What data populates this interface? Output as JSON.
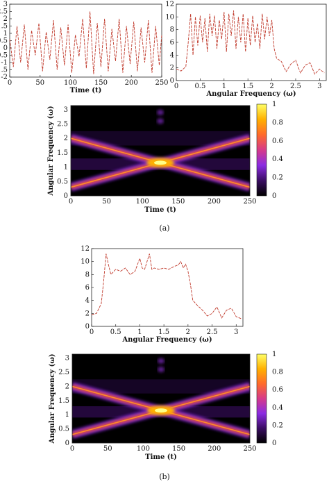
{
  "figure": {
    "caption_a": "(a)",
    "caption_b": "(b)"
  },
  "chart_data": [
    {
      "id": "signal",
      "type": "line",
      "title": "",
      "xlabel": "Time (t)",
      "ylabel": "",
      "xlim": [
        0,
        250
      ],
      "ylim": [
        -2,
        3
      ],
      "xticks": [
        "0",
        "50",
        "100",
        "150",
        "200",
        "250"
      ],
      "yticks": [
        "-2",
        "-1.5",
        "-1",
        "-0.5",
        "0",
        "0.5",
        "1",
        "1.5",
        "2",
        "2.5",
        "3"
      ],
      "x": [
        0,
        6,
        12,
        18,
        24,
        30,
        36,
        42,
        48,
        54,
        60,
        66,
        72,
        78,
        84,
        90,
        96,
        102,
        108,
        114,
        120,
        126,
        132,
        138,
        144,
        150,
        156,
        162,
        168,
        174,
        180,
        186,
        192,
        198,
        204,
        210,
        216,
        222,
        228,
        234,
        240,
        246,
        250
      ],
      "values": [
        0.6,
        -1.3,
        1.5,
        -1.0,
        1.6,
        -1.5,
        1.2,
        -0.5,
        1.7,
        -1.6,
        1.1,
        -0.8,
        1.9,
        -1.5,
        1.4,
        -1.2,
        1.6,
        -1.7,
        0.9,
        -0.6,
        2.0,
        -1.4,
        2.5,
        -1.8,
        1.7,
        -1.3,
        2.0,
        -1.6,
        1.3,
        -0.9,
        2.0,
        -1.7,
        1.5,
        -1.1,
        1.8,
        -1.6,
        1.4,
        -1.0,
        1.9,
        -1.7,
        1.5,
        -1.2,
        0.9
      ],
      "color": "#c0392b"
    },
    {
      "id": "spectrum_a",
      "type": "line",
      "title": "",
      "xlabel": "Angular Frequency (ω)",
      "ylabel": "",
      "xlim": [
        0,
        3.14
      ],
      "ylim": [
        0,
        12
      ],
      "xticks": [
        "0",
        "0.5",
        "1",
        "1.5",
        "2",
        "2.5",
        "3"
      ],
      "yticks": [
        "0",
        "2",
        "4",
        "6",
        "8",
        "10",
        "12"
      ],
      "x": [
        0,
        0.1,
        0.2,
        0.25,
        0.3,
        0.35,
        0.4,
        0.45,
        0.5,
        0.55,
        0.6,
        0.65,
        0.7,
        0.75,
        0.8,
        0.85,
        0.9,
        0.95,
        1.0,
        1.05,
        1.1,
        1.15,
        1.2,
        1.25,
        1.3,
        1.35,
        1.4,
        1.45,
        1.5,
        1.55,
        1.6,
        1.65,
        1.7,
        1.75,
        1.8,
        1.85,
        1.9,
        1.95,
        2.0,
        2.05,
        2.1,
        2.2,
        2.3,
        2.4,
        2.5,
        2.6,
        2.7,
        2.8,
        2.9,
        3.0,
        3.1
      ],
      "values": [
        1.8,
        1.5,
        2.2,
        6.0,
        10.5,
        4.0,
        10.0,
        5.5,
        10.2,
        6.0,
        9.8,
        4.5,
        10.5,
        7.0,
        10.2,
        5.0,
        9.5,
        6.5,
        10.8,
        4.5,
        10.5,
        7.0,
        11.0,
        5.0,
        10.0,
        6.0,
        10.5,
        4.5,
        9.8,
        5.5,
        10.2,
        6.0,
        9.0,
        5.0,
        10.5,
        6.5,
        10.0,
        7.0,
        9.5,
        5.0,
        3.5,
        3.0,
        1.4,
        2.6,
        3.2,
        1.2,
        2.4,
        2.8,
        1.0,
        1.8,
        1.2
      ],
      "color": "#c0392b"
    },
    {
      "id": "tfr_a",
      "type": "heatmap",
      "title": "",
      "xlabel": "Time (t)",
      "ylabel": "Angular Frequency (ω)",
      "xlim": [
        0,
        250
      ],
      "ylim": [
        0,
        3.14
      ],
      "xticks": [
        "0",
        "50",
        "100",
        "150",
        "200",
        "250"
      ],
      "yticks": [
        "0",
        "0.5",
        "1",
        "1.5",
        "2",
        "2.5",
        "3"
      ],
      "components": [
        {
          "name": "",
          "t": [
            0,
            250
          ],
          "omega": [
            0.3,
            2.0
          ]
        },
        {
          "name": "",
          "t": [
            0,
            250
          ],
          "omega": [
            2.0,
            0.3
          ]
        }
      ],
      "colorbar": {
        "range": [
          0,
          1
        ],
        "ticks": [
          "0",
          "0.2",
          "0.4",
          "0.6",
          "0.8",
          "1"
        ]
      },
      "colormap": [
        "#000000",
        "#3a0d63",
        "#8a2be2",
        "#d63a8a",
        "#ff6a2a",
        "#ffb000",
        "#ffff66"
      ]
    },
    {
      "id": "spectrum_b",
      "type": "line",
      "title": "",
      "xlabel": "Angular Frequency (ω)",
      "ylabel": "",
      "xlim": [
        0,
        3.14
      ],
      "ylim": [
        0,
        12
      ],
      "xticks": [
        "0",
        "0.5",
        "1",
        "1.5",
        "2",
        "2.5",
        "3"
      ],
      "yticks": [
        "0",
        "2",
        "4",
        "6",
        "8",
        "10",
        "12"
      ],
      "x": [
        0,
        0.1,
        0.2,
        0.25,
        0.3,
        0.35,
        0.4,
        0.5,
        0.6,
        0.7,
        0.8,
        0.9,
        1.0,
        1.05,
        1.1,
        1.15,
        1.2,
        1.25,
        1.3,
        1.4,
        1.5,
        1.6,
        1.7,
        1.8,
        1.85,
        1.9,
        1.95,
        2.0,
        2.05,
        2.1,
        2.2,
        2.3,
        2.4,
        2.5,
        2.6,
        2.7,
        2.8,
        2.9,
        3.0,
        3.1
      ],
      "values": [
        1.8,
        2.0,
        3.5,
        7.0,
        11.2,
        9.5,
        8.0,
        8.8,
        8.5,
        9.0,
        8.0,
        8.5,
        10.5,
        9.0,
        8.8,
        10.0,
        11.2,
        8.8,
        9.0,
        8.8,
        9.0,
        8.8,
        9.2,
        9.5,
        10.0,
        9.0,
        9.6,
        8.5,
        6.5,
        4.0,
        3.2,
        2.5,
        1.6,
        2.0,
        3.0,
        1.3,
        2.5,
        2.8,
        1.5,
        1.2
      ],
      "color": "#c0392b"
    },
    {
      "id": "tfr_b",
      "type": "heatmap",
      "title": "",
      "xlabel": "Time (t)",
      "ylabel": "Angular Frequency (ω)",
      "xlim": [
        0,
        250
      ],
      "ylim": [
        0,
        3.14
      ],
      "xticks": [
        "0",
        "50",
        "100",
        "150",
        "200",
        "250"
      ],
      "yticks": [
        "0",
        "0.5",
        "1",
        "1.5",
        "2",
        "2.5",
        "3"
      ],
      "components": [
        {
          "name": "",
          "t": [
            0,
            250
          ],
          "omega": [
            0.3,
            2.0
          ]
        },
        {
          "name": "",
          "t": [
            0,
            250
          ],
          "omega": [
            2.0,
            0.3
          ]
        }
      ],
      "colorbar": {
        "range": [
          0,
          1
        ],
        "ticks": [
          "0",
          "0.2",
          "0.4",
          "0.6",
          "0.8",
          "1"
        ]
      },
      "colormap": [
        "#000000",
        "#3a0d63",
        "#8a2be2",
        "#d63a8a",
        "#ff6a2a",
        "#ffb000",
        "#ffff66"
      ]
    }
  ]
}
